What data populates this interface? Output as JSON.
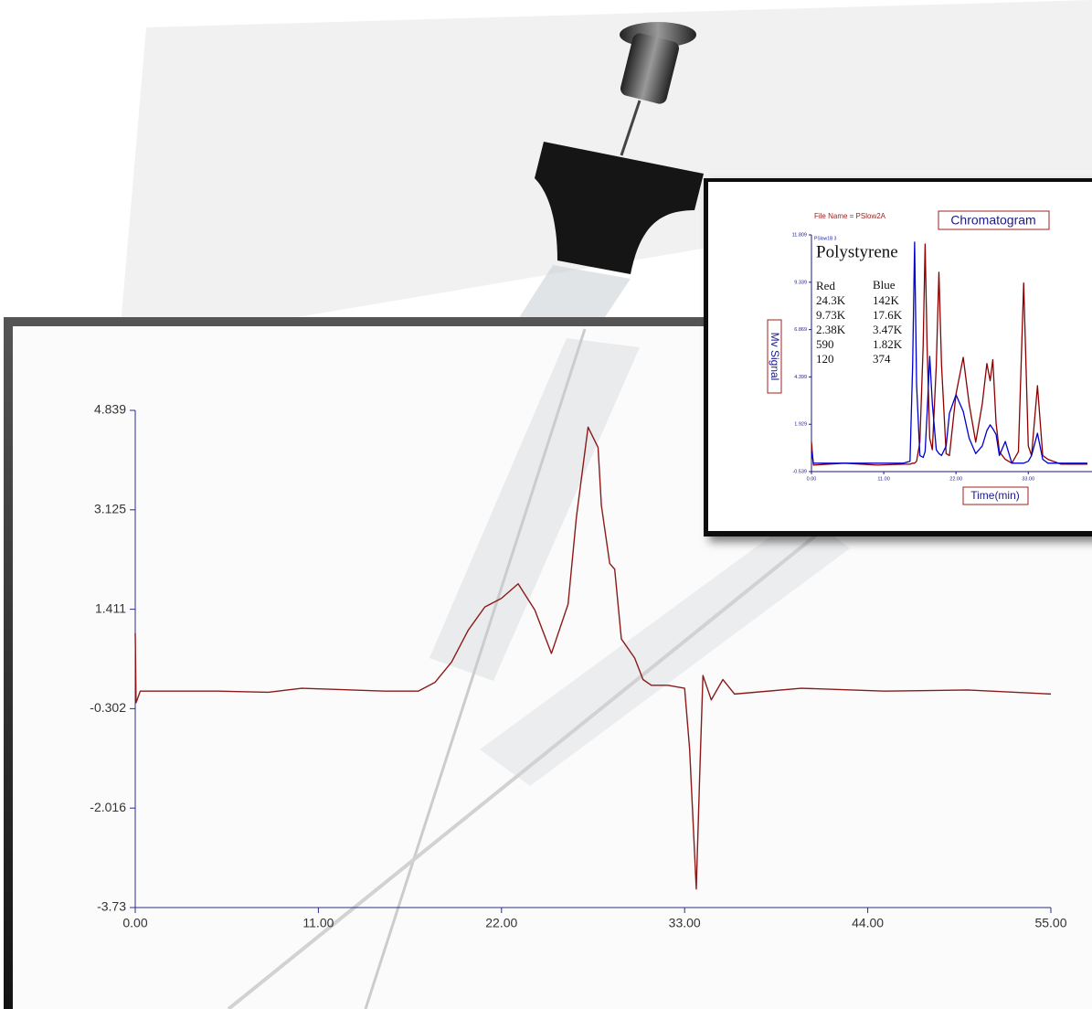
{
  "chart_data": [
    {
      "type": "line",
      "x": [
        0,
        0.05,
        0.3,
        5,
        8,
        10,
        15,
        17,
        18,
        19,
        20,
        21,
        22,
        23,
        24,
        25,
        26,
        26.5,
        27.2,
        27.8,
        28,
        28.5,
        28.8,
        29.2,
        30,
        30.5,
        31,
        32,
        33,
        33.3,
        33.7,
        33.9,
        34.1,
        34.6,
        35.3,
        36,
        40,
        45,
        50,
        55
      ],
      "values": [
        1.0,
        -0.2,
        0.0,
        0.0,
        -0.02,
        0.05,
        0.0,
        0.0,
        0.15,
        0.5,
        1.05,
        1.45,
        1.6,
        1.85,
        1.4,
        0.65,
        1.5,
        3.0,
        4.55,
        4.2,
        3.2,
        2.2,
        2.1,
        0.9,
        0.57,
        0.2,
        0.1,
        0.1,
        0.05,
        -1.0,
        -3.41,
        -1.5,
        0.27,
        -0.15,
        0.2,
        -0.05,
        0.05,
        0.0,
        0.02,
        -0.05
      ],
      "color": "#8b1a1a",
      "xlim": [
        0,
        55
      ],
      "ylim": [
        -3.73,
        4.839
      ],
      "xticks": [
        {
          "value": 0,
          "label": "0.00"
        },
        {
          "value": 11,
          "label": "11.00"
        },
        {
          "value": 22,
          "label": "22.00"
        },
        {
          "value": 33,
          "label": "33.00"
        },
        {
          "value": 44,
          "label": "44.00"
        },
        {
          "value": 55,
          "label": "55.00"
        }
      ],
      "yticks": [
        4.839,
        3.125,
        1.411,
        -0.302,
        -2.016,
        -3.73
      ]
    },
    {
      "type": "line",
      "title": "Chromatogram",
      "subtitle": "File Name = PSlow2A",
      "annotation": "PSlow1B 3",
      "ylabel": "Mv Signal",
      "xlabel": "Time(min)",
      "sample": "Polystyrene",
      "table_rows": [
        [
          "24.3K",
          "142K"
        ],
        [
          "9.73K",
          "17.6K"
        ],
        [
          "2.38K",
          "3.47K"
        ],
        [
          "590",
          "1.82K"
        ],
        [
          "120",
          "374"
        ]
      ],
      "x": [
        0,
        0.3,
        5,
        10,
        14,
        15,
        15.4,
        15.7,
        16,
        16.5,
        17,
        17.3,
        17.6,
        18,
        18.4,
        19,
        19.4,
        19.8,
        20.5,
        21,
        22,
        23.1,
        24,
        25,
        26,
        26.7,
        27.2,
        27.6,
        28.1,
        28.6,
        29.5,
        30.5,
        31.5,
        32.3,
        33,
        33.5,
        34.4,
        35.2,
        36,
        38,
        42
      ],
      "series": [
        {
          "name": "Red",
          "color": "#8b0000",
          "values": [
            1.0,
            -0.2,
            -0.1,
            -0.2,
            -0.15,
            -0.15,
            -0.1,
            -0.1,
            0.0,
            1.0,
            6.0,
            11.33,
            6.0,
            1.2,
            0.6,
            5.0,
            9.86,
            5.0,
            0.4,
            0.3,
            3.5,
            5.42,
            3.0,
            1.0,
            3.0,
            5.1,
            4.2,
            5.3,
            2.0,
            0.5,
            0.1,
            -0.1,
            0.5,
            9.3,
            0.8,
            0.3,
            3.94,
            0.3,
            0.1,
            -0.15,
            -0.15
          ]
        },
        {
          "name": "Blue",
          "color": "#0000cc",
          "values": [
            0.5,
            -0.1,
            -0.1,
            -0.1,
            -0.1,
            0.0,
            5.0,
            11.43,
            4.0,
            0.3,
            0.2,
            0.5,
            2.5,
            5.47,
            3.0,
            0.6,
            0.4,
            0.3,
            0.8,
            2.5,
            3.47,
            2.6,
            1.2,
            0.4,
            0.8,
            1.6,
            1.9,
            1.7,
            1.4,
            0.3,
            1.03,
            -0.1,
            -0.1,
            -0.1,
            0.0,
            0.3,
            1.46,
            0.1,
            -0.1,
            -0.1,
            -0.1
          ]
        }
      ],
      "xlim": [
        0,
        42.7
      ],
      "ylim": [
        -0.539,
        11.809
      ],
      "xticks": [
        {
          "value": 0,
          "label": "0.00"
        },
        {
          "value": 11,
          "label": "11.00"
        },
        {
          "value": 22,
          "label": "22.00"
        },
        {
          "value": 33,
          "label": "33.00"
        }
      ],
      "yticks": [
        11.809,
        9.339,
        6.869,
        4.399,
        1.929,
        -0.539
      ]
    }
  ]
}
